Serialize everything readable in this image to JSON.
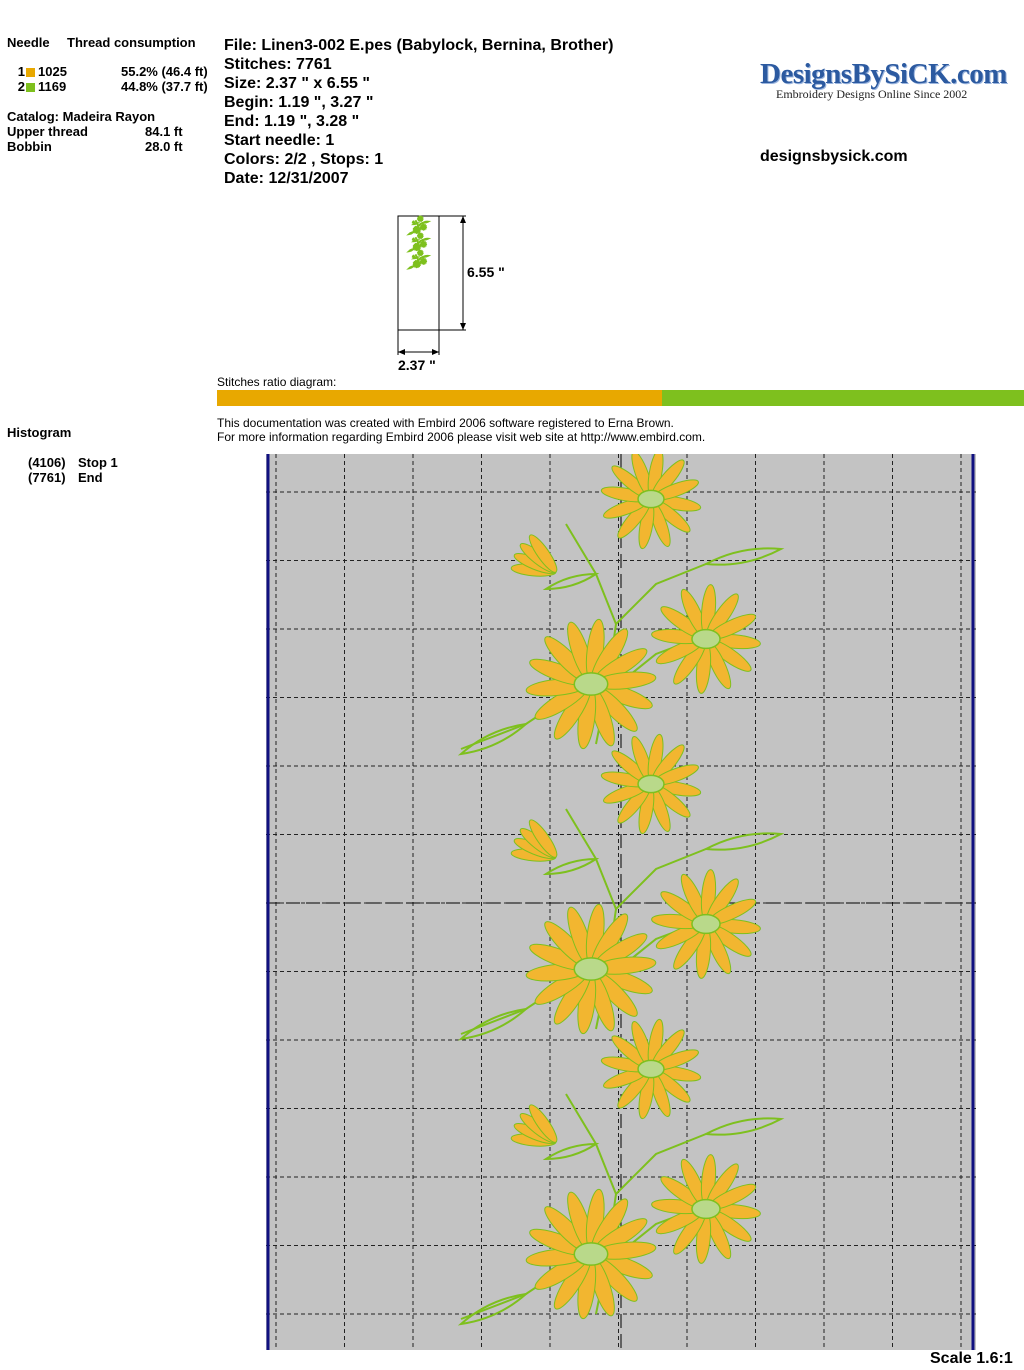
{
  "thread_panel": {
    "needle_header": "Needle",
    "consumption_header": "Thread consumption",
    "threads": [
      {
        "needle": "1",
        "code": "1025",
        "consumption": "55.2% (46.4 ft)",
        "color": "#e8a800"
      },
      {
        "needle": "2",
        "code": "1169",
        "consumption": "44.8% (37.7 ft)",
        "color": "#7ec01e"
      }
    ],
    "catalog": "Catalog: Madeira Rayon",
    "upper_thread_label": "Upper thread",
    "upper_thread_value": "84.1 ft",
    "bobbin_label": "Bobbin",
    "bobbin_value": "28.0 ft"
  },
  "design_info": {
    "file": "File: Linen3-002 E.pes  (Babylock, Bernina, Brother)",
    "stitches": "Stitches: 7761",
    "size": "Size: 2.37 \" x 6.55 \"",
    "begin": "Begin: 1.19 \", 3.27 \"",
    "end": "End: 1.19 \", 3.28 \"",
    "start_needle": "Start needle: 1",
    "colors_stops": "Colors: 2/2 , Stops: 1",
    "date": "Date: 12/31/2007"
  },
  "logo": {
    "main": "DesignsBySiCK.com",
    "sub": "Embroidery Designs Online Since 2002",
    "site": "designsbysick.com",
    "primary_color": "#2c5aa0"
  },
  "thumbnail": {
    "height_label": "6.55 \"",
    "width_label": "2.37 \""
  },
  "ratio": {
    "label": "Stitches ratio diagram:",
    "segments": [
      {
        "fraction": 0.552,
        "color": "#e8a800"
      },
      {
        "fraction": 0.448,
        "color": "#7ec01e"
      }
    ]
  },
  "footer_note": {
    "line1": "This documentation was created with Embird 2006 software registered to Erna Brown.",
    "line2": "For more information regarding Embird 2006 please visit web site at http://www.embird.com."
  },
  "histogram": {
    "title": "Histogram",
    "entries": [
      {
        "stitch": "(4106)",
        "label": "Stop 1"
      },
      {
        "stitch": "(7761)",
        "label": "End"
      }
    ]
  },
  "scale_label": "Scale 1.6:1",
  "colors": {
    "canvas_bg": "#c3c3c3",
    "border": "#101080",
    "petal_fill": "#f2b630",
    "stem": "#7ec01e"
  }
}
